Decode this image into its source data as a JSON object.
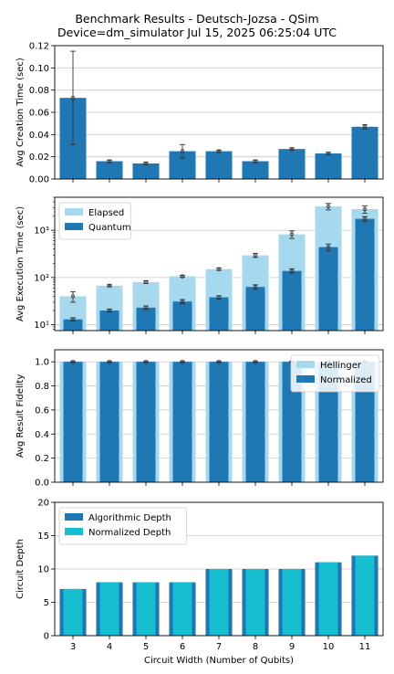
{
  "figure": {
    "title_line1": "Benchmark Results - Deutsch-Jozsa - QSim",
    "title_line2": "Device=dm_simulator  Jul 15, 2025 06:25:04 UTC",
    "xlabel": "Circuit Width (Number of Qubits)"
  },
  "colors": {
    "dark_blue": "#1f77b4",
    "light_blue": "#a6d8ee",
    "cyan": "#17becf",
    "grid": "#c8c8c8"
  },
  "chart_data": [
    {
      "type": "bar",
      "ylabel": "Avg Creation Time (sec)",
      "categories": [
        "3",
        "4",
        "5",
        "6",
        "7",
        "8",
        "9",
        "10",
        "11"
      ],
      "ylim": [
        0,
        0.12
      ],
      "yticks": [
        0,
        0.02,
        0.04,
        0.06,
        0.08,
        0.1,
        0.12
      ],
      "ytick_labels": [
        "0.00",
        "0.02",
        "0.04",
        "0.06",
        "0.08",
        "0.10",
        "0.12"
      ],
      "grid": true,
      "series": [
        {
          "values": [
            0.073,
            0.016,
            0.014,
            0.025,
            0.025,
            0.016,
            0.027,
            0.023,
            0.047
          ],
          "err": [
            0.042,
            0.001,
            0.001,
            0.006,
            0.001,
            0.001,
            0.001,
            0.001,
            0.002
          ],
          "color": "#1f77b4"
        }
      ]
    },
    {
      "type": "bar",
      "ylabel": "Avg Execution Time (sec)",
      "categories": [
        "3",
        "4",
        "5",
        "6",
        "7",
        "8",
        "9",
        "10",
        "11"
      ],
      "yscale": "log",
      "ylim": [
        7.5,
        5000
      ],
      "yticks": [
        10,
        100,
        1000
      ],
      "ytick_labels": [
        "10¹",
        "10²",
        "10³"
      ],
      "grid": true,
      "legend": "top-left",
      "series": [
        {
          "name": "Elapsed",
          "values": [
            40,
            67,
            80,
            106,
            150,
            295,
            820,
            3200,
            2800
          ],
          "err": [
            10,
            3,
            5,
            5,
            8,
            30,
            150,
            500,
            500
          ],
          "color": "#a6d8ee"
        },
        {
          "name": "Quantum",
          "values": [
            13,
            20,
            23,
            31,
            38,
            63,
            138,
            440,
            1750
          ],
          "err": [
            1,
            1.5,
            2,
            3,
            3,
            7,
            15,
            70,
            200
          ],
          "color": "#1f77b4"
        }
      ]
    },
    {
      "type": "bar",
      "ylabel": "Avg Result Fidelity",
      "categories": [
        "3",
        "4",
        "5",
        "6",
        "7",
        "8",
        "9",
        "10",
        "11"
      ],
      "ylim": [
        0,
        1.1
      ],
      "yticks": [
        0,
        0.2,
        0.4,
        0.6,
        0.8,
        1.0
      ],
      "ytick_labels": [
        "0.0",
        "0.2",
        "0.4",
        "0.6",
        "0.8",
        "1.0"
      ],
      "grid": true,
      "legend": "top-right",
      "series": [
        {
          "name": "Hellinger",
          "values": [
            1,
            1,
            1,
            1,
            1,
            1,
            1,
            1,
            1
          ],
          "color": "#a6d8ee"
        },
        {
          "name": "Normalized",
          "values": [
            1,
            1,
            1,
            1,
            1,
            1,
            1,
            1,
            1
          ],
          "err": [
            0.003,
            0.003,
            0.003,
            0.003,
            0.003,
            0.003,
            0.003,
            0.003,
            0.003
          ],
          "color": "#1f77b4"
        }
      ]
    },
    {
      "type": "bar",
      "ylabel": "Circuit Depth",
      "categories": [
        "3",
        "4",
        "5",
        "6",
        "7",
        "8",
        "9",
        "10",
        "11"
      ],
      "ylim": [
        0,
        20
      ],
      "yticks": [
        0,
        5,
        10,
        15,
        20
      ],
      "ytick_labels": [
        "0",
        "5",
        "10",
        "15",
        "20"
      ],
      "grid": true,
      "legend": "top-left",
      "series": [
        {
          "name": "Algorithmic Depth",
          "values": [
            7,
            8,
            8,
            8,
            10,
            10,
            10,
            11,
            12
          ],
          "color": "#1f77b4"
        },
        {
          "name": "Normalized Depth",
          "values": [
            7,
            8,
            8,
            8,
            10,
            10,
            10,
            11,
            12
          ],
          "color": "#17becf"
        }
      ]
    }
  ]
}
